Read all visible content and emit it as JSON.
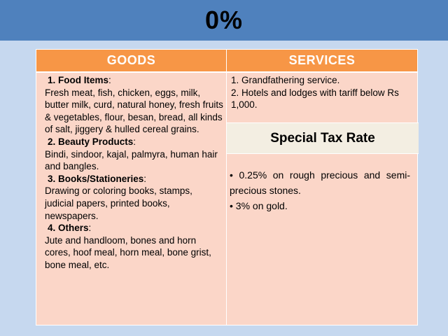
{
  "slide": {
    "title": "0%"
  },
  "table": {
    "header": {
      "goods": "GOODS",
      "services": "SERVICES"
    },
    "goods": [
      {
        "heading": "1. Food Items",
        "colon": ":",
        "text": "Fresh meat, fish, chicken, eggs, milk, butter milk, curd, natural honey, fresh fruits & vegetables, flour, besan, bread, all kinds of salt, jiggery & hulled cereal grains."
      },
      {
        "heading": "2. Beauty Products",
        "colon": ":",
        "text": "Bindi, sindoor, kajal, palmyra, human hair and bangles."
      },
      {
        "heading": "3. Books/Stationeries",
        "colon": ":",
        "text": "Drawing or coloring books, stamps, judicial papers, printed books, newspapers."
      },
      {
        "heading": "4. Others",
        "colon": ":",
        "text": "Jute and handloom, bones and horn cores, hoof meal, horn meal, bone grist, bone meal, etc."
      }
    ],
    "services": [
      "1. Grandfathering service.",
      "2. Hotels and lodges with tariff below Rs 1,000."
    ],
    "special": {
      "title": "Special Tax Rate",
      "items": [
        "• 0.25% on rough precious and semi-precious stones.",
        "• 3% on gold."
      ]
    }
  }
}
